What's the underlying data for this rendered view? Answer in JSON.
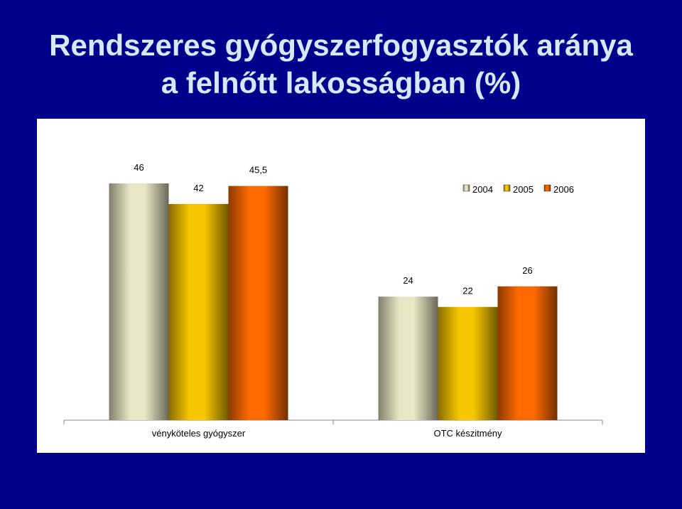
{
  "chart_data": {
    "type": "bar",
    "title": [
      "Rendszeres gyógyszerfogyasztók aránya",
      "a felnőtt lakosságban (%)"
    ],
    "categories": [
      "vényköteles gyógyszer",
      "OTC készitmény"
    ],
    "series": [
      {
        "name": "2004",
        "color": "#e9e6c4",
        "values": [
          46,
          24
        ],
        "value_labels": [
          "46",
          "24"
        ]
      },
      {
        "name": "2005",
        "color": "#f7c600",
        "values": [
          42,
          22
        ],
        "value_labels": [
          "42",
          "22"
        ]
      },
      {
        "name": "2006",
        "color": "#ff6a00",
        "values": [
          45.5,
          26
        ],
        "value_labels": [
          "45,5",
          "26"
        ]
      }
    ],
    "ylim": [
      0,
      50
    ],
    "legend": "top-right"
  }
}
